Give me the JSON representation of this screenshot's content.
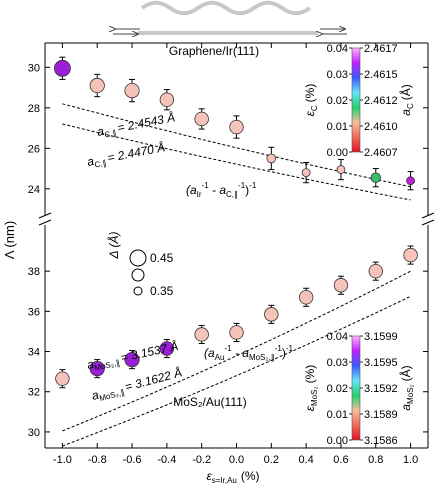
{
  "chart_data": [
    {
      "type": "scatter",
      "panel": "top",
      "title": "Graphene/Ir(111)",
      "xlabel_main": "ε",
      "xlabel_sub": "s=Ir,Au",
      "xlabel_unit": "(%)",
      "ylabel": "Λ (nm)",
      "ylim": [
        23.2,
        31.2
      ],
      "yticks": [
        "24",
        "26",
        "28",
        "30"
      ],
      "x": [
        -1.0,
        -0.8,
        -0.6,
        -0.4,
        -0.2,
        0.0,
        0.2,
        0.4,
        0.6,
        0.8,
        1.0
      ],
      "y": [
        29.95,
        29.1,
        28.85,
        28.4,
        27.45,
        27.05,
        25.5,
        24.8,
        24.95,
        24.55,
        24.4
      ],
      "err": [
        0.55,
        0.55,
        0.55,
        0.5,
        0.5,
        0.55,
        0.55,
        0.5,
        0.5,
        0.45,
        0.45
      ],
      "size": [
        0.45,
        0.43,
        0.43,
        0.42,
        0.42,
        0.42,
        0.36,
        0.35,
        0.35,
        0.37,
        0.35
      ],
      "color": [
        "#9b1fd8",
        "#f6c3bb",
        "#f6c3bb",
        "#f6c3bb",
        "#f6c3bb",
        "#f6c3bb",
        "#f6c3bb",
        "#f6c3bb",
        "#f6c3bb",
        "#34c06a",
        "#c01fd8"
      ],
      "curves": [
        {
          "label_a": "a",
          "label_sub": "C,∥",
          "label_value": "= 2.4543 Å",
          "y_start": 28.2,
          "y_end": 24.1
        },
        {
          "label_a": "a",
          "label_sub": "C,∥",
          "label_value": "= 2.4470 Å",
          "y_start": 27.2,
          "y_end": 23.45
        }
      ],
      "formula": "(a_Ir⁻¹ - a_C,∥⁻¹)⁻¹",
      "colorbar": {
        "left_ticks": [
          "0.04",
          "0.03",
          "0.02",
          "0.01",
          "0.00"
        ],
        "right_ticks": [
          "2.4617",
          "2.4615",
          "2.4612",
          "2.4610",
          "2.4607"
        ],
        "left_label_main": "ε",
        "left_label_sub": "C",
        "left_label_unit": "(%)",
        "right_label_main": "a",
        "right_label_sub": "C",
        "right_label_unit": "(Å)",
        "colors": [
          "#e8102c",
          "#f06a55",
          "#f3c0a0",
          "#1fd26a",
          "#6ce2ff",
          "#3a5cff",
          "#c220ff",
          "#ffb4ff"
        ]
      }
    },
    {
      "type": "scatter",
      "panel": "bottom",
      "title": "MoS₂/Au(111)",
      "ylim": [
        29.2,
        39.8
      ],
      "yticks": [
        "30",
        "32",
        "34",
        "36",
        "38"
      ],
      "x": [
        -1.0,
        -0.8,
        -0.6,
        -0.4,
        -0.2,
        0.0,
        0.2,
        0.4,
        0.6,
        0.8,
        1.0
      ],
      "y": [
        32.65,
        33.15,
        33.6,
        34.15,
        34.85,
        34.95,
        35.85,
        36.7,
        37.3,
        38.0,
        38.8
      ],
      "err": [
        0.45,
        0.45,
        0.45,
        0.45,
        0.45,
        0.45,
        0.45,
        0.45,
        0.45,
        0.45,
        0.45
      ],
      "size": [
        0.42,
        0.43,
        0.43,
        0.42,
        0.42,
        0.42,
        0.42,
        0.42,
        0.42,
        0.42,
        0.42
      ],
      "color": [
        "#f6c3bb",
        "#9b1fd8",
        "#9b1fd8",
        "#9b1fd8",
        "#f6c3bb",
        "#f6c3bb",
        "#f6c3bb",
        "#f6c3bb",
        "#f6c3bb",
        "#f6c3bb",
        "#f6c3bb"
      ],
      "curves": [
        {
          "label_a": "a",
          "label_sub": "MoS₂,∥",
          "label_value": "= 3.1537 Å",
          "y_start": 30.05,
          "y_end": 38.0
        },
        {
          "label_a": "a",
          "label_sub": "MoS₂,∥",
          "label_value": "= 3.1622 Å",
          "y_start": 29.3,
          "y_end": 36.75
        }
      ],
      "formula": "(a_Au⁻¹ - a_MoS₂,∥⁻¹)⁻¹",
      "colorbar": {
        "left_ticks": [
          "0.04",
          "0.03",
          "0.02",
          "0.01",
          "0.00"
        ],
        "right_ticks": [
          "3.1599",
          "3.1595",
          "3.1592",
          "3.1589",
          "3.1586"
        ],
        "left_label_main": "ε",
        "left_label_sub": "MoS₂",
        "left_label_unit": "(%)",
        "right_label_main": "a",
        "right_label_sub": "MoS₂",
        "right_label_unit": "(Å)",
        "colors": [
          "#e8102c",
          "#f06a55",
          "#f3c0a0",
          "#1fd26a",
          "#6ce2ff",
          "#3a5cff",
          "#c220ff",
          "#ffb4ff"
        ]
      }
    }
  ],
  "x_axis": {
    "xlim": [
      -1.1,
      1.1
    ],
    "ticks": [
      "-1.0",
      "-0.8",
      "-0.6",
      "-0.4",
      "-0.2",
      "0.0",
      "0.2",
      "0.4",
      "0.6",
      "0.8",
      "1.0"
    ]
  },
  "size_legend": {
    "title": "Δ (Å)",
    "items": [
      {
        "label": "0.45",
        "value": 0.45
      },
      {
        "label": "",
        "value": 0.4
      },
      {
        "label": "0.35",
        "value": 0.35
      }
    ]
  },
  "text_labels": {
    "formula_top": "(a",
    "formula_top_sub1": "Ir",
    "formula_top_mid": " - a",
    "formula_top_sub2": "C,∥",
    "formula_top_end": ")",
    "formula_bot": "(a",
    "formula_bot_sub1": "Au",
    "formula_bot_mid": " - a",
    "formula_bot_sub2": "MoS₂,∥",
    "formula_bot_end": ")",
    "sup_minus1": "-1"
  }
}
